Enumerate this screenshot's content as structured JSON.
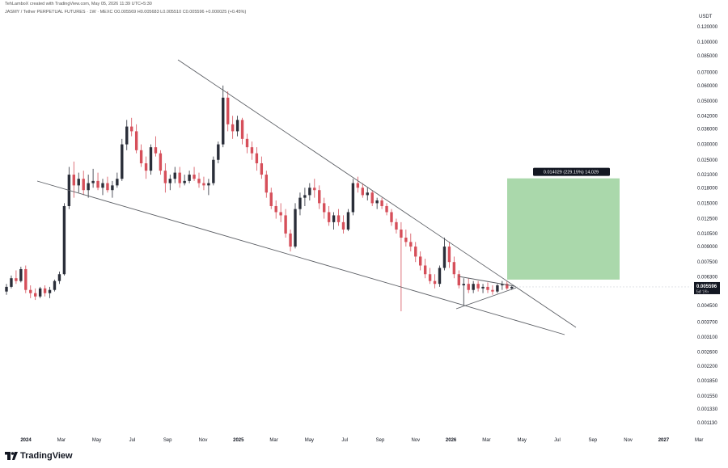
{
  "header": {
    "line1": "TehLamboX created with TradingView.com, May 05, 2026 11:39 UTC+5:30",
    "line2": "JASMY / Tether PERPETUAL FUTURES · 1W · MEXC  O0.005569  H0.005683  L0.005510  C0.005596  +0.000025 (+0.45%)"
  },
  "footer": {
    "brand": "TradingView"
  },
  "colors": {
    "up": "#2a2e39",
    "down": "#d64f5a",
    "target_box": "#a5d6a7",
    "line": "#5d6066",
    "badge": "#131722"
  },
  "chart_data": {
    "type": "candlestick",
    "title": "JASMY / Tether PERPETUAL FUTURES · 1W · MEXC",
    "y_unit": "USDT",
    "y_scale": "log",
    "y_ticks": [
      "0.120000",
      "0.100000",
      "0.085000",
      "0.070000",
      "0.060000",
      "0.050000",
      "0.042000",
      "0.036000",
      "0.030000",
      "0.025000",
      "0.021000",
      "0.018000",
      "0.015000",
      "0.012500",
      "0.010500",
      "0.009000",
      "0.007500",
      "0.006300",
      "0.005300",
      "0.004500",
      "0.003700",
      "0.003100",
      "0.002600",
      "0.002200",
      "0.001850",
      "0.001550",
      "0.001330",
      "0.001130"
    ],
    "x_ticks": [
      {
        "label": "2024",
        "bold": true
      },
      {
        "label": "Mar",
        "bold": false
      },
      {
        "label": "May",
        "bold": false
      },
      {
        "label": "Jul",
        "bold": false
      },
      {
        "label": "Sep",
        "bold": false
      },
      {
        "label": "Nov",
        "bold": false
      },
      {
        "label": "2025",
        "bold": true
      },
      {
        "label": "Mar",
        "bold": false
      },
      {
        "label": "May",
        "bold": false
      },
      {
        "label": "Jul",
        "bold": false
      },
      {
        "label": "Sep",
        "bold": false
      },
      {
        "label": "Nov",
        "bold": false
      },
      {
        "label": "2026",
        "bold": true
      },
      {
        "label": "Mar",
        "bold": false
      },
      {
        "label": "May",
        "bold": false
      },
      {
        "label": "Jul",
        "bold": false
      },
      {
        "label": "Sep",
        "bold": false
      },
      {
        "label": "Nov",
        "bold": false
      },
      {
        "label": "2027",
        "bold": true
      },
      {
        "label": "Mar",
        "bold": false
      }
    ],
    "last_price": "0.005596",
    "countdown": "5d 18h",
    "target": {
      "label": "0.014029 (229.15%) 14,029",
      "from_price": 0.0061,
      "to_price": 0.0201
    },
    "candles": [
      [
        0.0053,
        0.0058,
        0.0051,
        0.0056
      ],
      [
        0.0056,
        0.0064,
        0.0055,
        0.0062
      ],
      [
        0.0062,
        0.0068,
        0.0058,
        0.006
      ],
      [
        0.006,
        0.0071,
        0.0059,
        0.0069
      ],
      [
        0.0069,
        0.0072,
        0.0052,
        0.0054
      ],
      [
        0.0054,
        0.0057,
        0.0049,
        0.0052
      ],
      [
        0.0052,
        0.0055,
        0.0048,
        0.005
      ],
      [
        0.005,
        0.0056,
        0.0049,
        0.0055
      ],
      [
        0.0055,
        0.0057,
        0.005,
        0.0052
      ],
      [
        0.0052,
        0.0056,
        0.0049,
        0.0054
      ],
      [
        0.0054,
        0.0061,
        0.0053,
        0.006
      ],
      [
        0.006,
        0.0067,
        0.0058,
        0.0065
      ],
      [
        0.0065,
        0.015,
        0.0064,
        0.0145
      ],
      [
        0.0145,
        0.023,
        0.014,
        0.021
      ],
      [
        0.021,
        0.0245,
        0.016,
        0.0185
      ],
      [
        0.0185,
        0.0215,
        0.017,
        0.02
      ],
      [
        0.02,
        0.022,
        0.0165,
        0.0175
      ],
      [
        0.0175,
        0.021,
        0.016,
        0.019
      ],
      [
        0.019,
        0.0225,
        0.018,
        0.0195
      ],
      [
        0.0195,
        0.0215,
        0.0175,
        0.018
      ],
      [
        0.018,
        0.02,
        0.0165,
        0.019
      ],
      [
        0.019,
        0.0205,
        0.017,
        0.0175
      ],
      [
        0.0175,
        0.0195,
        0.016,
        0.0185
      ],
      [
        0.0185,
        0.0215,
        0.018,
        0.02
      ],
      [
        0.02,
        0.032,
        0.0195,
        0.03
      ],
      [
        0.03,
        0.04,
        0.028,
        0.037
      ],
      [
        0.037,
        0.041,
        0.033,
        0.035
      ],
      [
        0.035,
        0.038,
        0.027,
        0.028
      ],
      [
        0.028,
        0.03,
        0.023,
        0.024
      ],
      [
        0.024,
        0.026,
        0.02,
        0.022
      ],
      [
        0.022,
        0.03,
        0.021,
        0.029
      ],
      [
        0.029,
        0.033,
        0.026,
        0.027
      ],
      [
        0.027,
        0.028,
        0.021,
        0.022
      ],
      [
        0.022,
        0.024,
        0.017,
        0.019
      ],
      [
        0.019,
        0.021,
        0.0175,
        0.02
      ],
      [
        0.02,
        0.023,
        0.019,
        0.0215
      ],
      [
        0.0215,
        0.023,
        0.018,
        0.019
      ],
      [
        0.019,
        0.021,
        0.0185,
        0.0195
      ],
      [
        0.0195,
        0.022,
        0.019,
        0.021
      ],
      [
        0.021,
        0.023,
        0.0195,
        0.02
      ],
      [
        0.02,
        0.0215,
        0.018,
        0.019
      ],
      [
        0.019,
        0.0205,
        0.0175,
        0.0185
      ],
      [
        0.0185,
        0.02,
        0.0165,
        0.019
      ],
      [
        0.019,
        0.026,
        0.0185,
        0.025
      ],
      [
        0.025,
        0.031,
        0.024,
        0.03
      ],
      [
        0.03,
        0.06,
        0.029,
        0.052
      ],
      [
        0.052,
        0.056,
        0.035,
        0.038
      ],
      [
        0.038,
        0.042,
        0.032,
        0.035
      ],
      [
        0.035,
        0.042,
        0.033,
        0.04
      ],
      [
        0.04,
        0.041,
        0.03,
        0.032
      ],
      [
        0.032,
        0.034,
        0.027,
        0.029
      ],
      [
        0.029,
        0.031,
        0.025,
        0.027
      ],
      [
        0.027,
        0.029,
        0.022,
        0.024
      ],
      [
        0.024,
        0.026,
        0.02,
        0.021
      ],
      [
        0.021,
        0.022,
        0.016,
        0.017
      ],
      [
        0.017,
        0.018,
        0.014,
        0.0145
      ],
      [
        0.0145,
        0.0155,
        0.0125,
        0.0135
      ],
      [
        0.0135,
        0.015,
        0.012,
        0.013
      ],
      [
        0.013,
        0.014,
        0.01,
        0.0105
      ],
      [
        0.0105,
        0.011,
        0.0085,
        0.009
      ],
      [
        0.009,
        0.015,
        0.0088,
        0.014
      ],
      [
        0.014,
        0.017,
        0.013,
        0.016
      ],
      [
        0.016,
        0.018,
        0.0145,
        0.0165
      ],
      [
        0.0165,
        0.019,
        0.0155,
        0.018
      ],
      [
        0.018,
        0.02,
        0.016,
        0.0175
      ],
      [
        0.0175,
        0.0185,
        0.014,
        0.015
      ],
      [
        0.015,
        0.016,
        0.0125,
        0.0135
      ],
      [
        0.0135,
        0.0145,
        0.0115,
        0.012
      ],
      [
        0.012,
        0.0135,
        0.011,
        0.013
      ],
      [
        0.013,
        0.014,
        0.0115,
        0.012
      ],
      [
        0.012,
        0.013,
        0.0105,
        0.011
      ],
      [
        0.011,
        0.014,
        0.0108,
        0.0135
      ],
      [
        0.0135,
        0.02,
        0.013,
        0.019
      ],
      [
        0.019,
        0.0205,
        0.017,
        0.018
      ],
      [
        0.018,
        0.019,
        0.016,
        0.0165
      ],
      [
        0.0165,
        0.018,
        0.0155,
        0.017
      ],
      [
        0.017,
        0.0175,
        0.0145,
        0.015
      ],
      [
        0.015,
        0.016,
        0.014,
        0.0155
      ],
      [
        0.0155,
        0.016,
        0.014,
        0.0145
      ],
      [
        0.0145,
        0.015,
        0.013,
        0.0135
      ],
      [
        0.0135,
        0.014,
        0.0115,
        0.012
      ],
      [
        0.012,
        0.0125,
        0.0105,
        0.011
      ],
      [
        0.011,
        0.012,
        0.0042,
        0.01
      ],
      [
        0.01,
        0.011,
        0.009,
        0.0095
      ],
      [
        0.0095,
        0.0105,
        0.0085,
        0.009
      ],
      [
        0.009,
        0.0095,
        0.0075,
        0.008
      ],
      [
        0.008,
        0.0085,
        0.0068,
        0.0072
      ],
      [
        0.0072,
        0.0078,
        0.0062,
        0.0065
      ],
      [
        0.0065,
        0.007,
        0.0058,
        0.006
      ],
      [
        0.006,
        0.0065,
        0.0055,
        0.0058
      ],
      [
        0.0058,
        0.0072,
        0.0056,
        0.007
      ],
      [
        0.007,
        0.01,
        0.0068,
        0.009
      ],
      [
        0.009,
        0.0095,
        0.007,
        0.0075
      ],
      [
        0.0075,
        0.008,
        0.0062,
        0.0065
      ],
      [
        0.0065,
        0.0068,
        0.0055,
        0.0057
      ],
      [
        0.0057,
        0.0062,
        0.0045,
        0.0058
      ],
      [
        0.0058,
        0.0062,
        0.0052,
        0.0054
      ],
      [
        0.0054,
        0.006,
        0.0052,
        0.0058
      ],
      [
        0.0058,
        0.006,
        0.0053,
        0.0055
      ],
      [
        0.0055,
        0.0058,
        0.0052,
        0.0056
      ],
      [
        0.0056,
        0.0059,
        0.0052,
        0.0054
      ],
      [
        0.0054,
        0.0057,
        0.0051,
        0.0053
      ],
      [
        0.0053,
        0.0058,
        0.0052,
        0.0057
      ],
      [
        0.0057,
        0.006,
        0.0054,
        0.0058
      ],
      [
        0.0058,
        0.006,
        0.0054,
        0.0055
      ],
      [
        0.0055,
        0.0057,
        0.0054,
        0.0056
      ]
    ]
  }
}
